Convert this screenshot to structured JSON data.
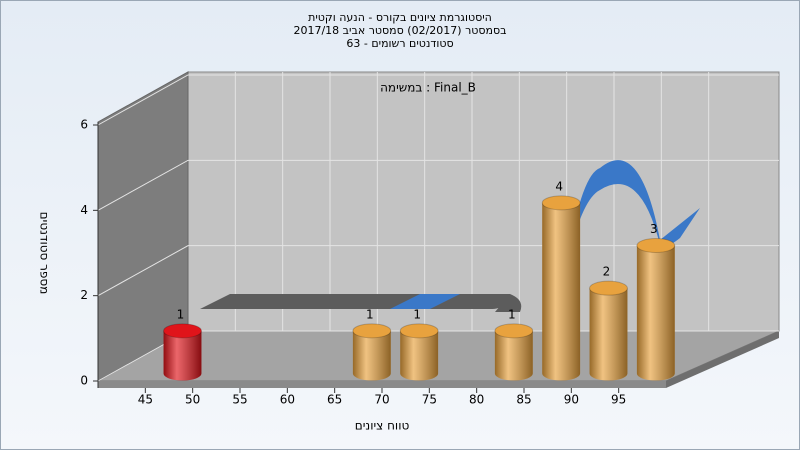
{
  "chart_data": {
    "type": "histogram",
    "title_lines": [
      "היסטוגרמת ציונים בקורס - הנעה וקטית",
      "בסמסטר (02/2017) סמסטר אביב 2017/18",
      "סטודנטים רשומים - 63"
    ],
    "subtitle": "במשימה : Final_B",
    "x_label": "טווח ציונים",
    "y_label": "מספר סטודנטים",
    "bins": [
      45,
      50,
      55,
      60,
      65,
      70,
      75,
      80,
      85,
      90,
      95,
      100
    ],
    "values": [
      1,
      0,
      0,
      0,
      1,
      1,
      0,
      1,
      4,
      2,
      3
    ],
    "bar_colors": [
      "#e0141a",
      "#e8a23e",
      "#e8a23e",
      "#e8a23e",
      "#e8a23e",
      "#e8a23e",
      "#e8a23e",
      "#e8a23e",
      "#e8a23e",
      "#e8a23e",
      "#e8a23e"
    ],
    "xlim": [
      40,
      100
    ],
    "xticks": [
      45,
      50,
      55,
      60,
      65,
      70,
      75,
      80,
      85,
      90,
      95
    ],
    "ylim": [
      0,
      6
    ],
    "yticks": [
      0,
      2,
      4,
      6
    ],
    "grid": true
  }
}
